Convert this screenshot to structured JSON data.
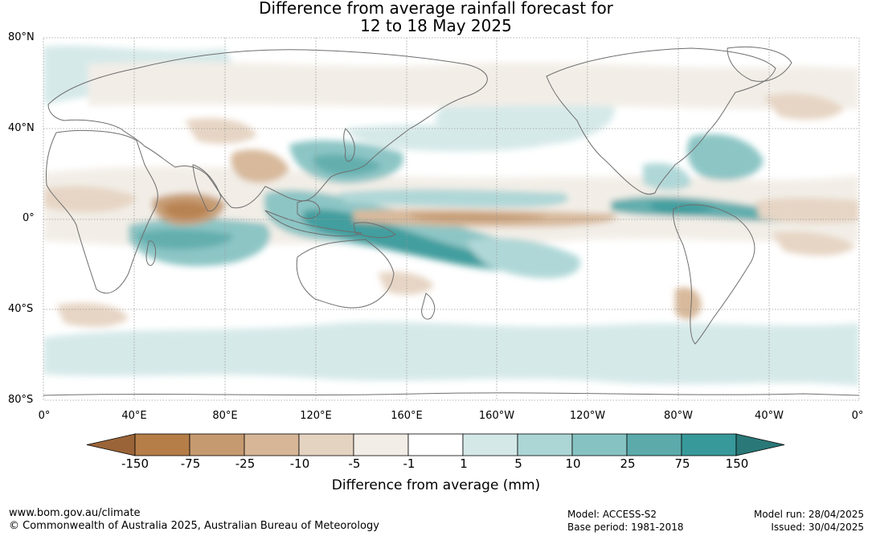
{
  "title_line1": "Difference from average rainfall forecast for",
  "title_line2": "12 to 18 May 2025",
  "map": {
    "lat_labels": [
      "80°N",
      "40°N",
      "0°",
      "40°S",
      "80°S"
    ],
    "lon_labels": [
      "0°",
      "40°E",
      "80°E",
      "120°E",
      "160°E",
      "160°W",
      "120°W",
      "80°W",
      "40°W",
      "0°"
    ],
    "anomaly_regions": [
      {
        "name": "maritime-continent-wet",
        "lon": 125,
        "lat": -3,
        "category": "75",
        "color": "#3b9a9a"
      },
      {
        "name": "west-pacific-wet",
        "lon": 135,
        "lat": 25,
        "category": "25",
        "color": "#62adad"
      },
      {
        "name": "south-pacific-convergence-wet",
        "lon": 175,
        "lat": -13,
        "category": "25",
        "color": "#62adad"
      },
      {
        "name": "south-indian-ocean-wet",
        "lon": 65,
        "lat": -8,
        "category": "25",
        "color": "#62adad"
      },
      {
        "name": "east-pacific-itcz-wet",
        "lon": -95,
        "lat": 3,
        "category": "75",
        "color": "#3b9a9a"
      },
      {
        "name": "north-atlantic-wet",
        "lon": -65,
        "lat": 32,
        "category": "25",
        "color": "#62adad"
      },
      {
        "name": "equatorial-indian-ocean-dry",
        "lon": 75,
        "lat": 2,
        "category": "-75",
        "color": "#c8986a"
      },
      {
        "name": "equatorial-pacific-dry",
        "lon": -160,
        "lat": 0,
        "category": "-25",
        "color": "#d5b493"
      },
      {
        "name": "south-china-dry",
        "lon": 110,
        "lat": 22,
        "category": "-25",
        "color": "#d5b493"
      }
    ]
  },
  "colorbar": {
    "colors": [
      "#9a6438",
      "#b57d48",
      "#c59a70",
      "#d6b696",
      "#e5d3c1",
      "#f2ede6",
      "#ffffff",
      "#d4e8e8",
      "#acd5d5",
      "#87c2c2",
      "#5caaaa",
      "#38999a",
      "#2a7878"
    ],
    "labels": [
      "-150",
      "-75",
      "-25",
      "-10",
      "-5",
      "-1",
      "1",
      "5",
      "10",
      "25",
      "75",
      "150"
    ],
    "title": "Difference from average (mm)"
  },
  "footer": {
    "website": "www.bom.gov.au/climate",
    "copyright": "© Commonwealth of Australia 2025, Australian Bureau of Meteorology",
    "model": "Model: ACCESS-S2",
    "base_period": "Base period: 1981-2018",
    "model_run": "Model run: 28/04/2025",
    "issued": "Issued: 30/04/2025"
  }
}
